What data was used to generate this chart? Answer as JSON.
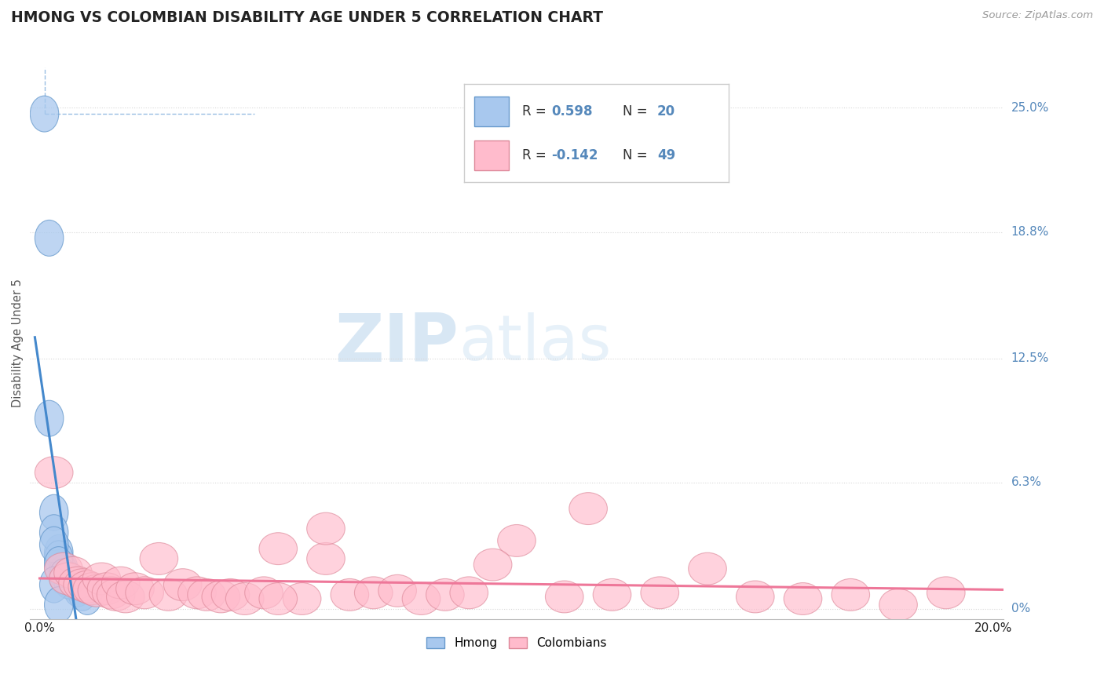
{
  "title": "HMONG VS COLOMBIAN DISABILITY AGE UNDER 5 CORRELATION CHART",
  "source_text": "Source: ZipAtlas.com",
  "ylabel": "Disability Age Under 5",
  "y_tick_labels": [
    "0%",
    "6.3%",
    "12.5%",
    "18.8%",
    "25.0%"
  ],
  "y_tick_values": [
    0.0,
    0.063,
    0.125,
    0.188,
    0.25
  ],
  "xlim": [
    -0.002,
    0.202
  ],
  "ylim": [
    -0.005,
    0.27
  ],
  "hmong_R": 0.598,
  "hmong_N": 20,
  "colombian_R": -0.142,
  "colombian_N": 49,
  "hmong_color": "#a8c8ee",
  "hmong_edge_color": "#6699cc",
  "hmong_line_color": "#4488cc",
  "colombian_color": "#ffbbcc",
  "colombian_edge_color": "#dd8899",
  "colombian_line_color": "#ee7799",
  "background_color": "#ffffff",
  "grid_color": "#d8d8d8",
  "title_color": "#222222",
  "right_label_color": "#5588bb",
  "hmong_x": [
    0.001,
    0.002,
    0.003,
    0.004,
    0.005,
    0.006,
    0.007,
    0.008,
    0.009,
    0.01,
    0.003,
    0.004,
    0.005,
    0.003,
    0.004,
    0.002,
    0.005,
    0.006,
    0.003,
    0.004
  ],
  "hmong_y": [
    0.247,
    0.185,
    0.048,
    0.028,
    0.02,
    0.015,
    0.013,
    0.01,
    0.008,
    0.006,
    0.038,
    0.025,
    0.018,
    0.032,
    0.022,
    0.095,
    0.016,
    0.014,
    0.012,
    0.002
  ],
  "colombian_x": [
    0.003,
    0.005,
    0.006,
    0.007,
    0.008,
    0.009,
    0.01,
    0.011,
    0.012,
    0.013,
    0.014,
    0.015,
    0.016,
    0.017,
    0.018,
    0.02,
    0.022,
    0.025,
    0.027,
    0.03,
    0.033,
    0.035,
    0.038,
    0.04,
    0.043,
    0.047,
    0.05,
    0.055,
    0.06,
    0.065,
    0.07,
    0.075,
    0.08,
    0.085,
    0.09,
    0.1,
    0.11,
    0.12,
    0.13,
    0.14,
    0.15,
    0.16,
    0.17,
    0.18,
    0.19,
    0.05,
    0.06,
    0.095,
    0.115
  ],
  "colombian_y": [
    0.068,
    0.02,
    0.015,
    0.018,
    0.013,
    0.012,
    0.011,
    0.01,
    0.009,
    0.015,
    0.01,
    0.008,
    0.007,
    0.013,
    0.006,
    0.01,
    0.008,
    0.025,
    0.007,
    0.012,
    0.008,
    0.007,
    0.006,
    0.007,
    0.005,
    0.008,
    0.03,
    0.005,
    0.025,
    0.007,
    0.008,
    0.009,
    0.005,
    0.007,
    0.008,
    0.034,
    0.006,
    0.007,
    0.008,
    0.02,
    0.006,
    0.005,
    0.007,
    0.002,
    0.008,
    0.005,
    0.04,
    0.022,
    0.05
  ],
  "legend_R1": "R = ",
  "legend_V1": "0.598",
  "legend_N1_label": "N = ",
  "legend_N1": "20",
  "legend_R2": "R = ",
  "legend_V2": "-0.142",
  "legend_N2_label": "N = ",
  "legend_N2": "49",
  "watermark_zip": "ZIP",
  "watermark_atlas": "atlas",
  "bottom_legend_hmong": "Hmong",
  "bottom_legend_colombian": "Colombians"
}
